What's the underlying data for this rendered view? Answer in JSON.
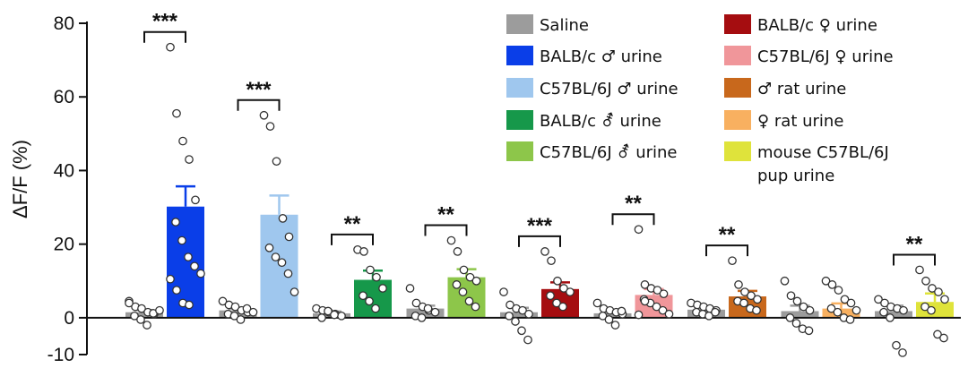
{
  "chart_data": {
    "type": "bar",
    "title": "",
    "xlabel": "",
    "ylabel": "ΔF/F (%)",
    "ylim": [
      -10,
      80
    ],
    "yticks": [
      -10,
      0,
      20,
      40,
      60,
      80
    ],
    "grid": false,
    "legend_position": "top-right",
    "pairs": [
      {
        "significance": "***",
        "control": {
          "value": 1.5,
          "sem": 0.6,
          "points": [
            4.5,
            3,
            2.5,
            1.5,
            1,
            0.5,
            -0.5,
            -2,
            1.2,
            2,
            4
          ]
        },
        "treatment": {
          "name": "BALB/c ♂ urine",
          "color": "#0a3ee8",
          "value": 30.2,
          "sem": 5.5,
          "points": [
            73.5,
            55.5,
            48,
            43,
            32,
            26,
            21,
            16.5,
            14,
            12,
            10.5,
            7.5,
            4,
            3.5
          ]
        }
      },
      {
        "significance": "***",
        "control": {
          "value": 2.0,
          "sem": 0.5,
          "points": [
            4.5,
            3.5,
            3,
            2,
            1.5,
            1,
            0.5,
            -0.5,
            2.5,
            1.5
          ]
        },
        "treatment": {
          "name": "C57BL/6J ♂ urine",
          "color": "#9fc7ee",
          "value": 28.0,
          "sem": 5.2,
          "points": [
            55,
            52,
            42.5,
            27,
            22,
            19,
            16.5,
            15,
            12,
            7
          ]
        }
      },
      {
        "significance": "**",
        "control": {
          "value": 1.2,
          "sem": 0.5,
          "points": [
            2.5,
            2,
            1.5,
            1,
            0.5,
            0,
            1.8,
            0.8
          ]
        },
        "treatment": {
          "name": "BALB/c ⚦ urine",
          "color": "#16984a",
          "value": 10.3,
          "sem": 2.5,
          "points": [
            18.5,
            18,
            13,
            11,
            8,
            6,
            4.5,
            2.5
          ]
        }
      },
      {
        "significance": "**",
        "control": {
          "value": 2.5,
          "sem": 0.8,
          "points": [
            8,
            4,
            3,
            2,
            1.5,
            0.5,
            0,
            2.5
          ]
        },
        "treatment": {
          "name": "C57BL/6J ⚦ urine",
          "color": "#8dc64a",
          "value": 11.0,
          "sem": 2.2,
          "points": [
            21,
            18,
            13,
            11,
            10,
            9,
            7,
            4.5,
            3
          ]
        }
      },
      {
        "significance": "***",
        "control": {
          "value": 1.5,
          "sem": 1.2,
          "points": [
            7,
            3.5,
            2.5,
            2,
            1,
            0.5,
            -1,
            -3.5,
            -6
          ]
        },
        "treatment": {
          "name": "BALB/c ♀ urine",
          "color": "#a50d10",
          "value": 7.8,
          "sem": 1.8,
          "points": [
            18,
            15.5,
            10,
            8,
            7,
            6,
            4,
            3
          ]
        }
      },
      {
        "significance": "**",
        "control": {
          "value": 1.2,
          "sem": 0.6,
          "points": [
            4,
            2.5,
            2,
            1.5,
            1,
            0.5,
            -0.5,
            -2,
            1.8
          ]
        },
        "treatment": {
          "name": "C57BL/6J ♀ urine",
          "color": "#f0969a",
          "value": 6.2,
          "sem": 1.6,
          "points": [
            24,
            9,
            8,
            7.5,
            6.5,
            5,
            4,
            3,
            2,
            1,
            0.8,
            4.5
          ]
        }
      },
      {
        "significance": "**",
        "control": {
          "value": 2.2,
          "sem": 0.6,
          "points": [
            4,
            3.5,
            3,
            2.5,
            2,
            1.5,
            1,
            0.5,
            1.5
          ]
        },
        "treatment": {
          "name": "♂ rat urine",
          "color": "#c8681c",
          "value": 5.8,
          "sem": 1.5,
          "points": [
            15.5,
            9,
            7,
            6,
            5,
            4.5,
            4,
            2.5,
            2
          ]
        }
      },
      {
        "significance": "",
        "control": {
          "value": 1.8,
          "sem": 1.5,
          "points": [
            10,
            6,
            4.5,
            3,
            2,
            0,
            -1.5,
            -3,
            -3.5
          ]
        },
        "treatment": {
          "name": "♀ rat urine",
          "color": "#f8b060",
          "value": 2.5,
          "sem": 1.4,
          "points": [
            10,
            9,
            7.5,
            5,
            4,
            2.5,
            1.5,
            0,
            -0.5,
            2
          ]
        }
      },
      {
        "significance": "**",
        "control": {
          "value": 1.8,
          "sem": 1.5,
          "points": [
            5,
            4,
            3,
            2.5,
            2,
            1.5,
            0,
            -7.5,
            -9.5
          ]
        },
        "treatment": {
          "name": "mouse C57BL/6J pup urine",
          "color": "#dfe33b",
          "value": 4.3,
          "sem": 2.3,
          "points": [
            13,
            10,
            8,
            7,
            5,
            3,
            2,
            -4.5,
            -5.5
          ]
        }
      }
    ],
    "control_name": "Saline",
    "control_color": "#9c9c9c",
    "legend": [
      {
        "label": "Saline",
        "color": "#9c9c9c"
      },
      {
        "label": "BALB/c ♂ urine",
        "color": "#0a3ee8"
      },
      {
        "label": "C57BL/6J ♂ urine",
        "color": "#9fc7ee"
      },
      {
        "label": "BALB/c ⚦ urine",
        "color": "#16984a"
      },
      {
        "label": "C57BL/6J ⚦ urine",
        "color": "#8dc64a"
      },
      {
        "label": "BALB/c ♀ urine",
        "color": "#a50d10"
      },
      {
        "label": "C57BL/6J ♀ urine",
        "color": "#f0969a"
      },
      {
        "label": "♂ rat urine",
        "color": "#c8681c"
      },
      {
        "label": "♀ rat urine",
        "color": "#f8b060"
      },
      {
        "label": "mouse C57BL/6J pup urine",
        "lines": [
          "mouse C57BL/6J",
          "pup urine"
        ],
        "color": "#dfe33b"
      }
    ]
  }
}
